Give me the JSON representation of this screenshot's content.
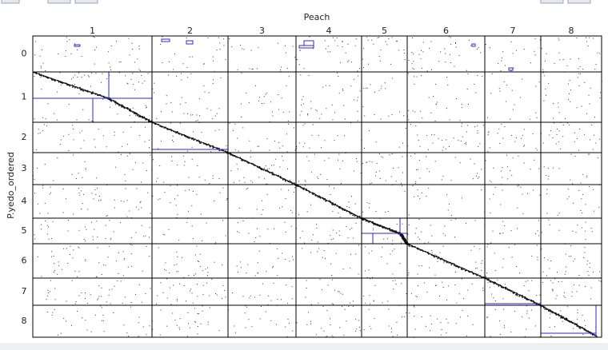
{
  "x_axis": {
    "title": "Peach",
    "labels": [
      "1",
      "2",
      "3",
      "4",
      "5",
      "6",
      "7",
      "8"
    ]
  },
  "y_axis": {
    "title": "P.yedo_ordered",
    "labels": [
      "0",
      "1",
      "2",
      "3",
      "4",
      "5",
      "6",
      "7",
      "8"
    ]
  }
}
